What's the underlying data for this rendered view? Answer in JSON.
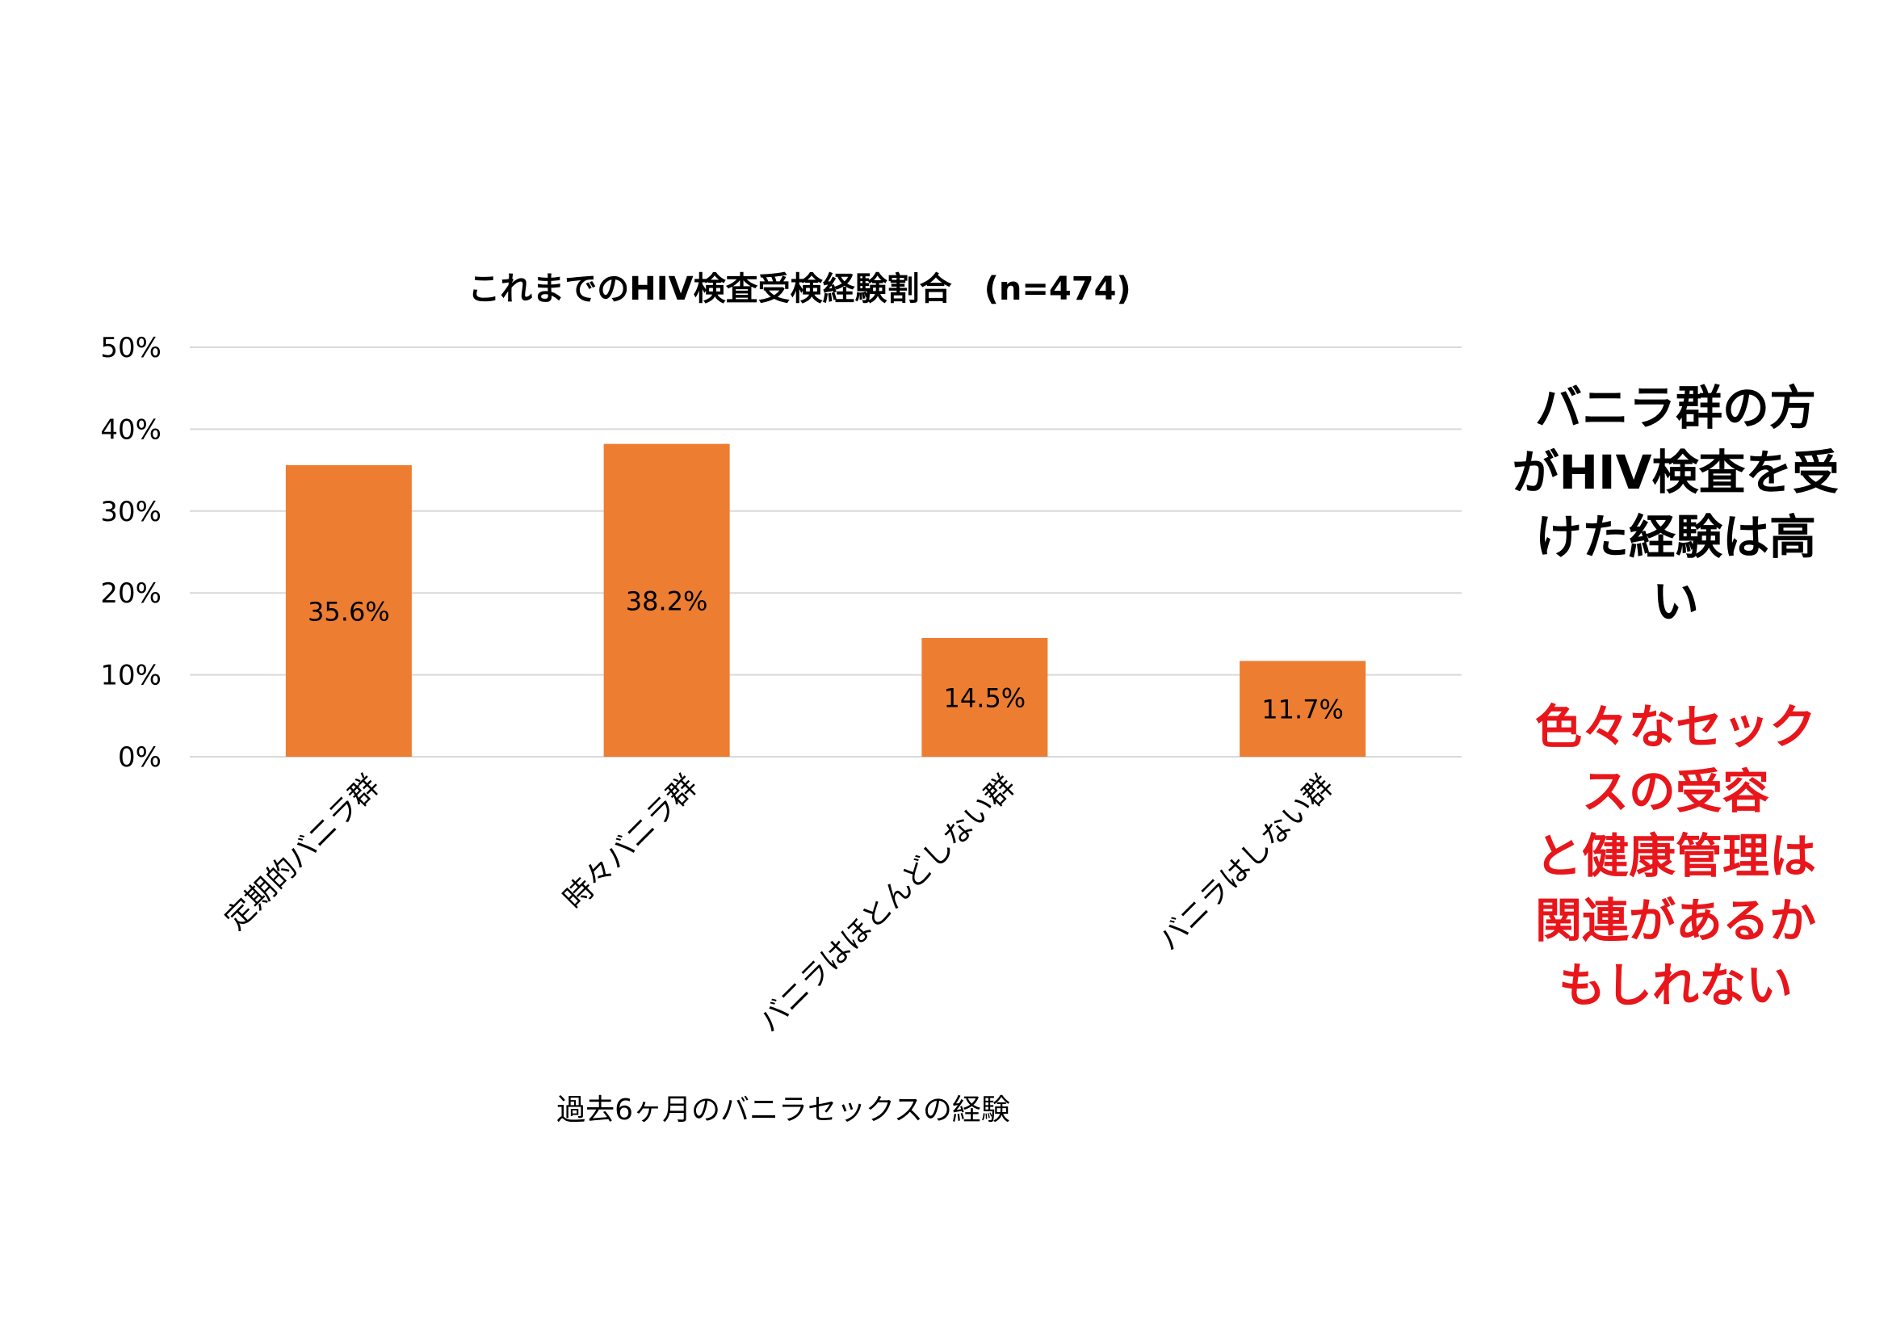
{
  "chart_data": {
    "type": "bar",
    "title": "これまでのHIV検査受検経験割合　(n=474)",
    "xlabel": "過去6ヶ月のバニラセックスの経験",
    "ylabel": "",
    "categories": [
      "定期的バニラ群",
      "時々バニラ群",
      "バニラはほとんどしない群",
      "バニラはしない群"
    ],
    "values": [
      35.6,
      38.2,
      14.5,
      11.7
    ],
    "data_labels": [
      "35.6%",
      "38.2%",
      "14.5%",
      "11.7%"
    ],
    "ylim": [
      0,
      50
    ],
    "yticks": [
      0,
      10,
      20,
      30,
      40,
      50
    ],
    "ytick_labels": [
      "0%",
      "10%",
      "20%",
      "30%",
      "40%",
      "50%"
    ],
    "grid": true,
    "legend": "none",
    "bar_color": "#ed7d31",
    "grid_color": "#d9d9d9"
  },
  "callouts": {
    "black_lines": [
      "バニラ群の方",
      "がHIV検査を受",
      "けた経験は高",
      "い"
    ],
    "red_lines": [
      "色々なセック",
      "スの受容",
      "と健康管理は",
      "関連があるか",
      "もしれない"
    ],
    "black_color": "#000000",
    "red_color": "#e8161b"
  }
}
